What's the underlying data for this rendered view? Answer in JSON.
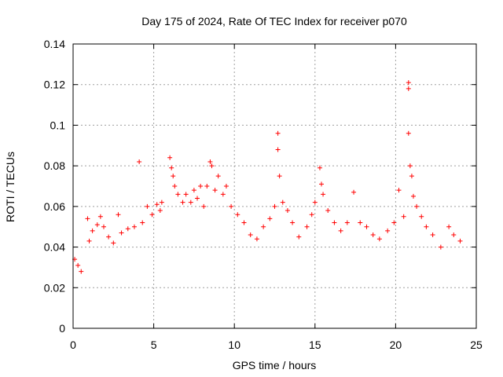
{
  "chart_data": {
    "type": "scatter",
    "title": "Day 175 of 2024, Rate Of TEC Index for receiver p070",
    "xlabel": "GPS time / hours",
    "ylabel": "ROTI / TECUs",
    "xlim": [
      0,
      25
    ],
    "ylim": [
      0,
      0.14
    ],
    "x_ticks": [
      0,
      5,
      10,
      15,
      20,
      25
    ],
    "x_tick_labels": [
      "0",
      "5",
      "10",
      "15",
      "20",
      "25"
    ],
    "y_ticks": [
      0,
      0.02,
      0.04,
      0.06,
      0.08,
      0.1,
      0.12,
      0.14
    ],
    "y_tick_labels": [
      "0",
      "0.02",
      "0.04",
      "0.06",
      "0.08",
      "0.1",
      "0.12",
      "0.14"
    ],
    "grid": true,
    "marker": "+",
    "color": "#ff0000",
    "series": [
      {
        "name": "ROTI",
        "points": [
          [
            0.1,
            0.034
          ],
          [
            0.3,
            0.031
          ],
          [
            0.5,
            0.028
          ],
          [
            0.9,
            0.054
          ],
          [
            1.0,
            0.043
          ],
          [
            1.2,
            0.048
          ],
          [
            1.5,
            0.051
          ],
          [
            1.7,
            0.055
          ],
          [
            1.9,
            0.05
          ],
          [
            2.2,
            0.045
          ],
          [
            2.5,
            0.042
          ],
          [
            2.8,
            0.056
          ],
          [
            3.0,
            0.047
          ],
          [
            3.4,
            0.049
          ],
          [
            3.8,
            0.05
          ],
          [
            4.1,
            0.082
          ],
          [
            4.3,
            0.052
          ],
          [
            4.6,
            0.06
          ],
          [
            4.9,
            0.056
          ],
          [
            5.2,
            0.061
          ],
          [
            5.4,
            0.058
          ],
          [
            5.5,
            0.062
          ],
          [
            6.0,
            0.084
          ],
          [
            6.1,
            0.079
          ],
          [
            6.2,
            0.075
          ],
          [
            6.3,
            0.07
          ],
          [
            6.5,
            0.066
          ],
          [
            6.8,
            0.062
          ],
          [
            7.0,
            0.066
          ],
          [
            7.3,
            0.062
          ],
          [
            7.5,
            0.068
          ],
          [
            7.7,
            0.064
          ],
          [
            7.9,
            0.07
          ],
          [
            8.1,
            0.06
          ],
          [
            8.3,
            0.07
          ],
          [
            8.5,
            0.082
          ],
          [
            8.6,
            0.08
          ],
          [
            8.8,
            0.068
          ],
          [
            9.0,
            0.075
          ],
          [
            9.3,
            0.066
          ],
          [
            9.5,
            0.07
          ],
          [
            9.8,
            0.06
          ],
          [
            10.2,
            0.056
          ],
          [
            10.6,
            0.052
          ],
          [
            11.0,
            0.046
          ],
          [
            11.4,
            0.044
          ],
          [
            11.8,
            0.05
          ],
          [
            12.2,
            0.054
          ],
          [
            12.5,
            0.06
          ],
          [
            12.7,
            0.096
          ],
          [
            12.7,
            0.088
          ],
          [
            12.8,
            0.075
          ],
          [
            13.0,
            0.062
          ],
          [
            13.3,
            0.058
          ],
          [
            13.6,
            0.052
          ],
          [
            14.0,
            0.045
          ],
          [
            14.5,
            0.05
          ],
          [
            14.8,
            0.056
          ],
          [
            15.0,
            0.062
          ],
          [
            15.3,
            0.079
          ],
          [
            15.4,
            0.071
          ],
          [
            15.5,
            0.066
          ],
          [
            15.8,
            0.058
          ],
          [
            16.2,
            0.052
          ],
          [
            16.6,
            0.048
          ],
          [
            17.0,
            0.052
          ],
          [
            17.4,
            0.067
          ],
          [
            17.8,
            0.052
          ],
          [
            18.2,
            0.05
          ],
          [
            18.6,
            0.046
          ],
          [
            19.0,
            0.044
          ],
          [
            19.5,
            0.048
          ],
          [
            19.9,
            0.052
          ],
          [
            20.2,
            0.068
          ],
          [
            20.5,
            0.055
          ],
          [
            20.8,
            0.121
          ],
          [
            20.8,
            0.118
          ],
          [
            20.8,
            0.096
          ],
          [
            20.9,
            0.08
          ],
          [
            21.0,
            0.075
          ],
          [
            21.1,
            0.065
          ],
          [
            21.3,
            0.06
          ],
          [
            21.6,
            0.055
          ],
          [
            21.9,
            0.05
          ],
          [
            22.3,
            0.046
          ],
          [
            22.8,
            0.04
          ],
          [
            23.3,
            0.05
          ],
          [
            23.6,
            0.046
          ],
          [
            24.0,
            0.043
          ]
        ]
      }
    ]
  }
}
